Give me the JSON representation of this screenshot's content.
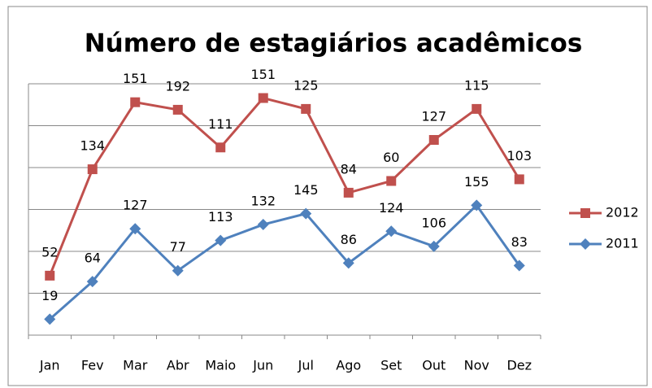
{
  "chart_data": {
    "type": "line",
    "stacked": true,
    "title": "Número de estagiários acadêmicos",
    "categories": [
      "Jan",
      "Fev",
      "Mar",
      "Abr",
      "Maio",
      "Jun",
      "Jul",
      "Ago",
      "Set",
      "Out",
      "Nov",
      "Dez"
    ],
    "series": [
      {
        "name": "2011",
        "color": "#4f81bd",
        "marker": "diamond",
        "values": [
          19,
          64,
          127,
          77,
          113,
          132,
          145,
          86,
          124,
          106,
          155,
          83
        ]
      },
      {
        "name": "2012",
        "color": "#c0504d",
        "marker": "square",
        "values": [
          52,
          134,
          151,
          192,
          111,
          151,
          125,
          84,
          60,
          127,
          115,
          103
        ]
      }
    ],
    "ylim": [
      0,
      300
    ],
    "yticks": [
      0,
      50,
      100,
      150,
      200,
      250,
      300
    ],
    "grid": true,
    "legend": "right"
  }
}
